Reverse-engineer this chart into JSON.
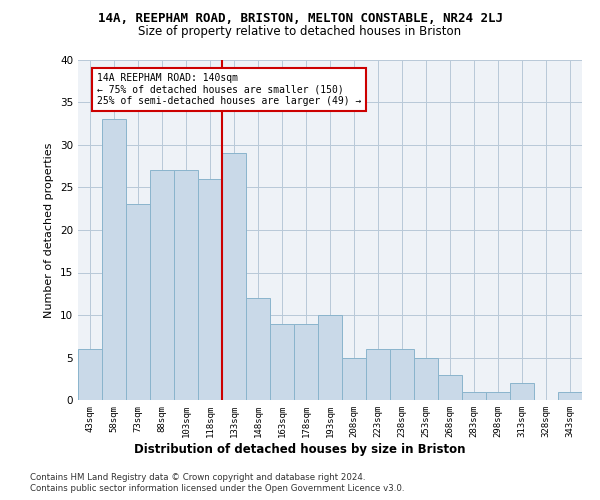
{
  "title1": "14A, REEPHAM ROAD, BRISTON, MELTON CONSTABLE, NR24 2LJ",
  "title2": "Size of property relative to detached houses in Briston",
  "xlabel": "Distribution of detached houses by size in Briston",
  "ylabel": "Number of detached properties",
  "categories": [
    "43sqm",
    "58sqm",
    "73sqm",
    "88sqm",
    "103sqm",
    "118sqm",
    "133sqm",
    "148sqm",
    "163sqm",
    "178sqm",
    "193sqm",
    "208sqm",
    "223sqm",
    "238sqm",
    "253sqm",
    "268sqm",
    "283sqm",
    "298sqm",
    "313sqm",
    "328sqm",
    "343sqm"
  ],
  "values": [
    6,
    33,
    23,
    27,
    27,
    26,
    29,
    12,
    9,
    9,
    10,
    5,
    6,
    6,
    5,
    3,
    1,
    1,
    2,
    0,
    1
  ],
  "bar_color": "#c9d9e8",
  "bar_edge_color": "#8ab4cc",
  "vline_x_idx": 6,
  "vline_color": "#cc0000",
  "annotation_text": "14A REEPHAM ROAD: 140sqm\n← 75% of detached houses are smaller (150)\n25% of semi-detached houses are larger (49) →",
  "annotation_box_color": "#ffffff",
  "annotation_box_edge": "#cc0000",
  "ylim": [
    0,
    40
  ],
  "yticks": [
    0,
    5,
    10,
    15,
    20,
    25,
    30,
    35,
    40
  ],
  "footer1": "Contains HM Land Registry data © Crown copyright and database right 2024.",
  "footer2": "Contains public sector information licensed under the Open Government Licence v3.0.",
  "bg_color": "#ffffff",
  "plot_bg_color": "#eef2f7"
}
